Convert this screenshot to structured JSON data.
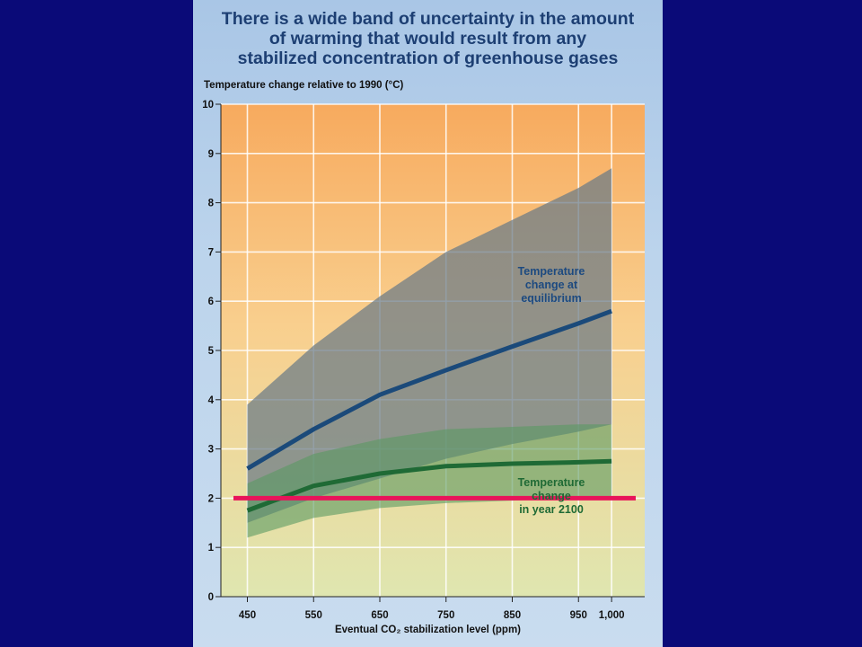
{
  "slide": {
    "background": "#0a0a78",
    "panel_background": "#bcd4ec"
  },
  "chart_data": {
    "type": "line",
    "title": "There is a wide band of uncertainty in the amount\nof warming that would result from any\nstabilized concentration of greenhouse gases",
    "ylabel": "Temperature change relative to 1990 (°C)",
    "xlabel": "Eventual CO₂ stabilization level (ppm)",
    "x": [
      450,
      550,
      650,
      750,
      850,
      950,
      1000
    ],
    "xtick_labels": [
      "450",
      "550",
      "650",
      "750",
      "850",
      "950",
      "1,000"
    ],
    "xlim": [
      410,
      1050
    ],
    "ylim": [
      0,
      10
    ],
    "yticks": [
      0,
      1,
      2,
      3,
      4,
      5,
      6,
      7,
      8,
      9,
      10
    ],
    "grid": true,
    "series": [
      {
        "name": "Temperature change at equilibrium",
        "label_lines": [
          "Temperature",
          "change at",
          "equilibrium"
        ],
        "color": "#1b4a7a",
        "band_color": "#6a7a86",
        "x": [
          450,
          550,
          650,
          750,
          850,
          950,
          1000
        ],
        "values": [
          2.6,
          3.4,
          4.1,
          4.6,
          5.08,
          5.55,
          5.8
        ],
        "upper": [
          3.9,
          5.1,
          6.1,
          7.0,
          7.65,
          8.3,
          8.7
        ],
        "lower": [
          1.5,
          2.0,
          2.4,
          2.8,
          3.1,
          3.35,
          3.5
        ]
      },
      {
        "name": "Temperature change in year 2100",
        "label_lines": [
          "Temperature",
          "change",
          "in year 2100"
        ],
        "color": "#1f6a35",
        "band_color": "#5a9a62",
        "x": [
          450,
          550,
          650,
          750,
          850,
          950,
          1000
        ],
        "values": [
          1.75,
          2.25,
          2.5,
          2.65,
          2.7,
          2.73,
          2.75
        ],
        "upper": [
          2.3,
          2.9,
          3.2,
          3.4,
          3.45,
          3.5,
          3.5
        ],
        "lower": [
          1.2,
          1.6,
          1.8,
          1.9,
          1.95,
          2.0,
          2.0
        ]
      }
    ],
    "reference_line": {
      "y": 2.0,
      "color": "#e8145a"
    }
  }
}
